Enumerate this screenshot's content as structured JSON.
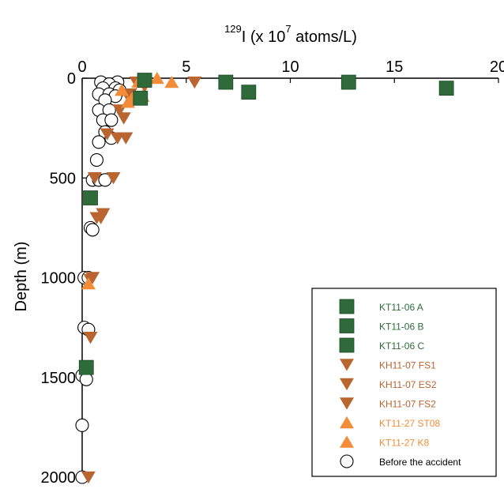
{
  "chart_data": {
    "type": "scatter",
    "title": "",
    "xlabel": {
      "prefix": "",
      "sup1": "129",
      "mid": "I (x 10",
      "sup2": "7",
      "suffix": " atoms/L)"
    },
    "ylabel": "Depth (m)",
    "xlim": [
      0,
      20
    ],
    "ylim": [
      0,
      2000
    ],
    "y_inverted": true,
    "x_axis_position": "top",
    "x_ticks": [
      0,
      5,
      10,
      15,
      20
    ],
    "y_ticks": [
      0,
      500,
      1000,
      1500,
      2000
    ],
    "grid": false,
    "legend_position": "bottom-right",
    "series": [
      {
        "name": "KT11-06 A",
        "marker": "square",
        "color": "#2f6b3a",
        "points": [
          [
            3.0,
            10
          ],
          [
            2.8,
            100
          ],
          [
            0.4,
            600
          ],
          [
            0.2,
            1450
          ]
        ]
      },
      {
        "name": "KT11-06 B",
        "marker": "square",
        "color": "#2f6b3a",
        "points": [
          [
            6.9,
            20
          ],
          [
            8.0,
            70
          ]
        ]
      },
      {
        "name": "KT11-06 C",
        "marker": "square",
        "color": "#2f6b3a",
        "points": [
          [
            12.8,
            20
          ],
          [
            17.5,
            50
          ]
        ]
      },
      {
        "name": "KH11-07 FS1",
        "marker": "triangle-down",
        "color": "#b86530",
        "points": [
          [
            2.6,
            20
          ],
          [
            2.3,
            80
          ],
          [
            2.0,
            200
          ],
          [
            1.7,
            300
          ],
          [
            1.5,
            500
          ],
          [
            0.9,
            700
          ],
          [
            0.5,
            1000
          ],
          [
            0.4,
            1300
          ],
          [
            0.3,
            2000
          ]
        ]
      },
      {
        "name": "KH11-07 ES2",
        "marker": "triangle-down",
        "color": "#b86530",
        "points": [
          [
            3.0,
            40
          ],
          [
            5.4,
            20
          ],
          [
            2.1,
            300
          ],
          [
            1.0,
            680
          ],
          [
            0.4,
            1010
          ]
        ]
      },
      {
        "name": "KH11-07 FS2",
        "marker": "triangle-down",
        "color": "#b86530",
        "points": [
          [
            2.2,
            90
          ],
          [
            1.8,
            160
          ],
          [
            1.2,
            280
          ],
          [
            0.6,
            500
          ],
          [
            0.7,
            700
          ]
        ]
      },
      {
        "name": "KT11-27 ST08",
        "marker": "triangle-up",
        "color": "#f28c38",
        "points": [
          [
            2.7,
            20
          ],
          [
            2.4,
            100
          ],
          [
            1.9,
            60
          ],
          [
            3.6,
            0
          ],
          [
            0.3,
            1030
          ]
        ]
      },
      {
        "name": "KT11-27 K8",
        "marker": "triangle-up",
        "color": "#f28c38",
        "points": [
          [
            4.3,
            20
          ],
          [
            2.9,
            90
          ],
          [
            2.2,
            120
          ]
        ]
      },
      {
        "name": "Before the accident",
        "marker": "circle",
        "color": "#ffffff",
        "points": [
          [
            0.9,
            20
          ],
          [
            1.7,
            20
          ],
          [
            1.3,
            30
          ],
          [
            1.0,
            50
          ],
          [
            1.6,
            50
          ],
          [
            1.8,
            60
          ],
          [
            0.8,
            80
          ],
          [
            1.3,
            80
          ],
          [
            1.6,
            90
          ],
          [
            1.1,
            110
          ],
          [
            0.8,
            160
          ],
          [
            1.3,
            160
          ],
          [
            1.0,
            210
          ],
          [
            1.4,
            210
          ],
          [
            1.1,
            270
          ],
          [
            1.4,
            300
          ],
          [
            0.8,
            320
          ],
          [
            0.7,
            410
          ],
          [
            0.5,
            510
          ],
          [
            0.8,
            510
          ],
          [
            1.1,
            510
          ],
          [
            0.4,
            750
          ],
          [
            0.5,
            760
          ],
          [
            0.1,
            1000
          ],
          [
            0.3,
            1000
          ],
          [
            0.1,
            1250
          ],
          [
            0.3,
            1260
          ],
          [
            0.0,
            1490
          ],
          [
            0.2,
            1510
          ],
          [
            0.0,
            1740
          ],
          [
            0.0,
            2000
          ]
        ]
      }
    ]
  },
  "colors": {
    "dark_green": "#2f6b3a",
    "rust": "#b86530",
    "orange": "#f28c38"
  }
}
